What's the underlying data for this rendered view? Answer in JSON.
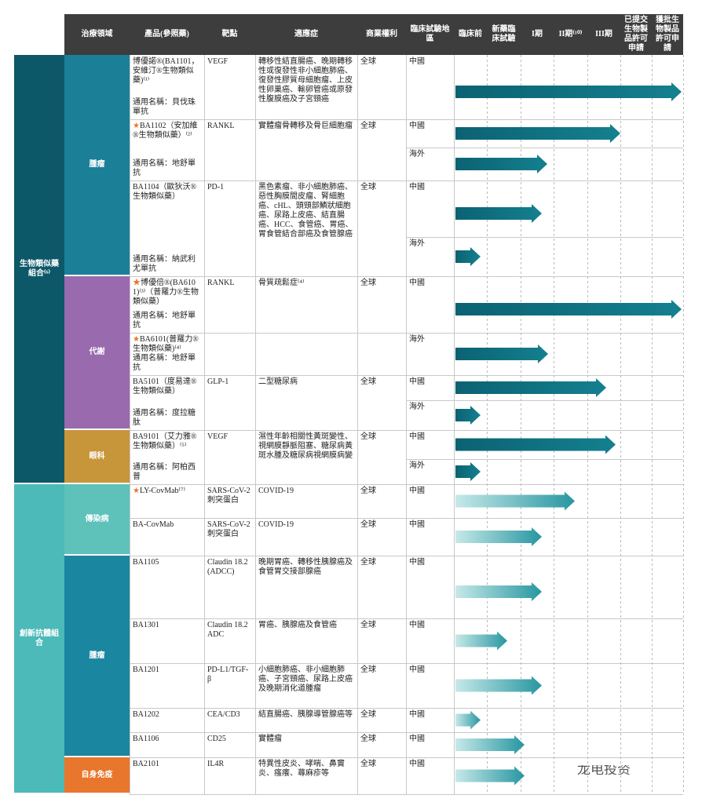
{
  "header": {
    "columns": [
      "治療領域",
      "產品(參照藥)",
      "靶點",
      "適應症",
      "商業權利",
      "臨床試驗地區",
      "臨床前",
      "新藥臨床試驗",
      "I期",
      "II期⁽¹⁰⁾",
      "III期",
      "已提交生物製品許可申請",
      "獲批生物製品許可申請"
    ]
  },
  "groups": [
    {
      "label": "生物類似藥組合⁽⁶⁾",
      "areas": [
        {
          "label": "腫瘤",
          "rows": [
            {
              "products": [
                {
                  "name": "博優諾®(BA1101，安維汀®生物類似藥)⁽¹⁾",
                  "generic": "通用名稱：貝伐珠單抗"
                }
              ],
              "target": "VEGF",
              "indication": "轉移性結直腸癌、晚期轉移性或復發性非小細胞肺癌、復發性膠質母細胞瘤、上皮性卵巢癌、輸卵管癌或原發性腹膜癌及子宮頸癌",
              "rights": "全球",
              "regions": [
                "中國"
              ]
            },
            {
              "products": [
                {
                  "name": "BA1102（安加維®生物類似藥）⁽²⁾",
                  "generic": "通用名稱：地舒單抗"
                }
              ],
              "target": "RANKL",
              "indication": "實體瘤骨轉移及骨巨細胞瘤",
              "rights": "全球",
              "regions": [
                "中國",
                "海外"
              ]
            },
            {
              "products": [
                {
                  "name": "BA1104（歐狄沃®生物類似藥）",
                  "generic": "通用名稱：納武利尤單抗"
                }
              ],
              "target": "PD-1",
              "indication": "黑色素瘤、非小細胞肺癌、惡性胸膜間皮瘤、腎細胞癌、cHL、頭頸部鱗狀細胞癌、尿路上皮癌、結直腸癌、HCC、食管癌、胃癌、胃食管結合部癌及食管腺癌",
              "rights": "全球",
              "regions": [
                "中國",
                "海外"
              ]
            }
          ]
        },
        {
          "label": "代謝",
          "rows": [
            {
              "products": [
                {
                  "name": "博優倍®(BA6101)⁽³⁾（普羅力®生物類似藥）",
                  "generic": "通用名稱：地舒單抗"
                },
                {
                  "name": "BA6101(普羅力®生物類似藥)⁽⁴⁾",
                  "generic": "通用名稱：地舒單抗"
                }
              ],
              "target": "RANKL",
              "indication": "骨質疏鬆症⁽⁴⁾",
              "rights": "全球",
              "regions": [
                "中國",
                "海外"
              ]
            },
            {
              "products": [
                {
                  "name": "BA5101（度易達®生物類似藥）",
                  "generic": "通用名稱：度拉糖肽"
                }
              ],
              "target": "GLP-1",
              "indication": "二型糖尿病",
              "rights": "全球",
              "regions": [
                "中國",
                "海外"
              ]
            }
          ]
        },
        {
          "label": "眼科",
          "rows": [
            {
              "products": [
                {
                  "name": "BA9101（艾力雅®生物類似藥）⁽⁵⁾",
                  "generic": "通用名稱：阿柏西普"
                }
              ],
              "target": "VEGF",
              "indication": "濕性年齡相關性黃斑變性、視網膜靜脈阻塞、糖尿病黃斑水腫及糖尿病視網膜病變",
              "rights": "全球",
              "regions": [
                "中國",
                "海外"
              ]
            }
          ]
        }
      ]
    },
    {
      "label": "創新抗體組合",
      "areas": [
        {
          "label": "傳染病",
          "rows": [
            {
              "products": [
                {
                  "name": "LY-CovMab⁽⁷⁾"
                }
              ],
              "target": "SARS-CoV-2刺突蛋白",
              "indication": "COVID-19",
              "rights": "全球",
              "regions": [
                "中國"
              ]
            },
            {
              "products": [
                {
                  "name": "BA-CovMab"
                }
              ],
              "target": "SARS-CoV-2刺突蛋白",
              "indication": "COVID-19",
              "rights": "全球",
              "regions": [
                "中國"
              ]
            }
          ]
        },
        {
          "label": "腫瘤",
          "rows": [
            {
              "products": [
                {
                  "name": "BA1105"
                }
              ],
              "target": "Claudin 18.2 (ADCC)",
              "indication": "晚期胃癌、轉移性胰腺癌及食管胃交接部腺癌",
              "rights": "全球",
              "regions": [
                "中國"
              ]
            },
            {
              "products": [
                {
                  "name": "BA1301"
                }
              ],
              "target": "Claudin 18.2 ADC",
              "indication": "胃癌、胰腺癌及食管癌",
              "rights": "全球",
              "regions": [
                "中國"
              ]
            },
            {
              "products": [
                {
                  "name": "BA1201"
                }
              ],
              "target": "PD-L1/TGF-β",
              "indication": "小細胞肺癌、非小細胞肺癌、子宮頸癌、尿路上皮癌及晚期消化道腫瘤",
              "rights": "全球",
              "regions": [
                "中國"
              ]
            },
            {
              "products": [
                {
                  "name": "BA1202"
                }
              ],
              "target": "CEA/CD3",
              "indication": "結直腸癌、胰腺導管腺癌等",
              "rights": "全球",
              "regions": [
                "中國"
              ]
            },
            {
              "products": [
                {
                  "name": "BA1106"
                }
              ],
              "target": "CD25",
              "indication": "實體瘤",
              "rights": "全球",
              "regions": [
                "中國"
              ]
            }
          ]
        },
        {
          "label": "自身免疫",
          "rows": [
            {
              "products": [
                {
                  "name": "BA2101"
                }
              ],
              "target": "IL4R",
              "indication": "特異性皮炎、哮喘、鼻竇炎、瘙癢、蕁麻疹等",
              "rights": "全球",
              "regions": [
                "中國"
              ]
            }
          ]
        }
      ]
    }
  ],
  "watermark": "龙电投资"
}
